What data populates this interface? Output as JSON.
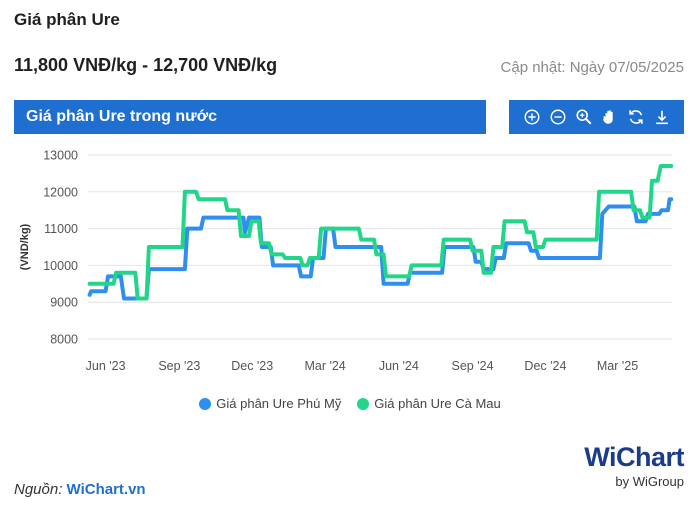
{
  "header": {
    "title": "Giá phân Ure",
    "price_range": "11,800 VNĐ/kg - 12,700 VNĐ/kg",
    "updated": "Cập nhật: Ngày 07/05/2025"
  },
  "panel": {
    "title": "Giá phân Ure trong nước"
  },
  "toolbar": {
    "icons": [
      "zoom-in-icon",
      "zoom-out-icon",
      "magnify-icon",
      "pan-hand-icon",
      "reset-icon",
      "download-icon"
    ]
  },
  "footer": {
    "source_label": "Nguồn:",
    "source_link": "WiChart.vn",
    "brand_w": "Wi",
    "brand_chart": "Chart",
    "brand_by": "by WiGroup"
  },
  "colors": {
    "accent": "#1f6fd1",
    "phu_my": "#2e8ff0",
    "ca_mau": "#21d688"
  },
  "chart_data": {
    "type": "line",
    "title": "",
    "xlabel": "",
    "ylabel": "(VND/kg)",
    "ylim": [
      8000,
      13000
    ],
    "yticks": [
      8000,
      9000,
      10000,
      11000,
      12000,
      13000
    ],
    "xlim": [
      "2023-05-10",
      "2025-05-08"
    ],
    "xticks": [
      {
        "date": "2023-06-01",
        "label": "Jun '23"
      },
      {
        "date": "2023-09-01",
        "label": "Sep '23"
      },
      {
        "date": "2023-12-01",
        "label": "Dec '23"
      },
      {
        "date": "2024-03-01",
        "label": "Mar '24"
      },
      {
        "date": "2024-06-01",
        "label": "Jun '24"
      },
      {
        "date": "2024-09-01",
        "label": "Sep '24"
      },
      {
        "date": "2024-12-01",
        "label": "Dec '24"
      },
      {
        "date": "2025-03-01",
        "label": "Mar '25"
      }
    ],
    "legend_position": "bottom",
    "grid": "horizontal",
    "series": [
      {
        "name": "Giá phân Ure Phú Mỹ",
        "points": [
          [
            "2023-05-12",
            9200
          ],
          [
            "2023-05-14",
            9300
          ],
          [
            "2023-06-01",
            9300
          ],
          [
            "2023-06-04",
            9700
          ],
          [
            "2023-06-20",
            9700
          ],
          [
            "2023-06-24",
            9100
          ],
          [
            "2023-07-22",
            9100
          ],
          [
            "2023-07-25",
            9900
          ],
          [
            "2023-09-08",
            9900
          ],
          [
            "2023-09-11",
            11000
          ],
          [
            "2023-09-28",
            11000
          ],
          [
            "2023-10-01",
            11300
          ],
          [
            "2023-11-20",
            11300
          ],
          [
            "2023-11-22",
            10900
          ],
          [
            "2023-11-27",
            11300
          ],
          [
            "2023-12-10",
            11300
          ],
          [
            "2023-12-13",
            10500
          ],
          [
            "2023-12-24",
            10500
          ],
          [
            "2023-12-27",
            10000
          ],
          [
            "2024-01-28",
            10000
          ],
          [
            "2024-01-31",
            9700
          ],
          [
            "2024-02-12",
            9700
          ],
          [
            "2024-02-15",
            10200
          ],
          [
            "2024-02-28",
            10200
          ],
          [
            "2024-03-02",
            11000
          ],
          [
            "2024-03-11",
            11000
          ],
          [
            "2024-03-14",
            10500
          ],
          [
            "2024-05-10",
            10500
          ],
          [
            "2024-05-13",
            9500
          ],
          [
            "2024-06-12",
            9500
          ],
          [
            "2024-06-15",
            9800
          ],
          [
            "2024-07-25",
            9800
          ],
          [
            "2024-07-28",
            10500
          ],
          [
            "2024-09-02",
            10500
          ],
          [
            "2024-09-05",
            10100
          ],
          [
            "2024-09-12",
            10100
          ],
          [
            "2024-09-15",
            9900
          ],
          [
            "2024-09-27",
            9900
          ],
          [
            "2024-09-30",
            10200
          ],
          [
            "2024-10-10",
            10200
          ],
          [
            "2024-10-13",
            10600
          ],
          [
            "2024-11-10",
            10600
          ],
          [
            "2024-11-13",
            10400
          ],
          [
            "2024-11-20",
            10400
          ],
          [
            "2024-11-23",
            10200
          ],
          [
            "2025-02-07",
            10200
          ],
          [
            "2025-02-10",
            11400
          ],
          [
            "2025-02-18",
            11600
          ],
          [
            "2025-03-22",
            11600
          ],
          [
            "2025-03-25",
            11200
          ],
          [
            "2025-04-05",
            11200
          ],
          [
            "2025-04-08",
            11400
          ],
          [
            "2025-04-22",
            11400
          ],
          [
            "2025-04-25",
            11500
          ],
          [
            "2025-05-03",
            11500
          ],
          [
            "2025-05-05",
            11800
          ],
          [
            "2025-05-07",
            11800
          ]
        ]
      },
      {
        "name": "Giá phân Ure Cà Mau",
        "points": [
          [
            "2023-05-12",
            9500
          ],
          [
            "2023-06-11",
            9500
          ],
          [
            "2023-06-14",
            9800
          ],
          [
            "2023-07-08",
            9800
          ],
          [
            "2023-07-11",
            9100
          ],
          [
            "2023-07-22",
            9100
          ],
          [
            "2023-07-25",
            10500
          ],
          [
            "2023-09-05",
            10500
          ],
          [
            "2023-09-08",
            12000
          ],
          [
            "2023-09-22",
            12000
          ],
          [
            "2023-09-25",
            11800
          ],
          [
            "2023-10-28",
            11800
          ],
          [
            "2023-10-31",
            11500
          ],
          [
            "2023-11-14",
            11500
          ],
          [
            "2023-11-17",
            10800
          ],
          [
            "2023-11-27",
            10800
          ],
          [
            "2023-11-30",
            11200
          ],
          [
            "2023-12-09",
            11200
          ],
          [
            "2023-12-12",
            10600
          ],
          [
            "2023-12-22",
            10600
          ],
          [
            "2023-12-25",
            10300
          ],
          [
            "2024-01-08",
            10300
          ],
          [
            "2024-01-11",
            10200
          ],
          [
            "2024-01-30",
            10200
          ],
          [
            "2024-02-02",
            10000
          ],
          [
            "2024-02-08",
            10000
          ],
          [
            "2024-02-11",
            10200
          ],
          [
            "2024-02-22",
            10200
          ],
          [
            "2024-02-25",
            11000
          ],
          [
            "2024-04-12",
            11000
          ],
          [
            "2024-04-15",
            10700
          ],
          [
            "2024-05-01",
            10700
          ],
          [
            "2024-05-04",
            10300
          ],
          [
            "2024-05-13",
            10300
          ],
          [
            "2024-05-16",
            9700
          ],
          [
            "2024-06-14",
            9700
          ],
          [
            "2024-06-17",
            10000
          ],
          [
            "2024-07-24",
            10000
          ],
          [
            "2024-07-27",
            10700
          ],
          [
            "2024-08-29",
            10700
          ],
          [
            "2024-09-01",
            10400
          ],
          [
            "2024-09-12",
            10400
          ],
          [
            "2024-09-15",
            9800
          ],
          [
            "2024-09-24",
            9800
          ],
          [
            "2024-09-27",
            10500
          ],
          [
            "2024-10-08",
            10500
          ],
          [
            "2024-10-11",
            11200
          ],
          [
            "2024-11-05",
            11200
          ],
          [
            "2024-11-08",
            10900
          ],
          [
            "2024-11-16",
            10900
          ],
          [
            "2024-11-19",
            10500
          ],
          [
            "2024-11-28",
            10500
          ],
          [
            "2024-12-01",
            10700
          ],
          [
            "2025-02-03",
            10700
          ],
          [
            "2025-02-06",
            12000
          ],
          [
            "2025-03-18",
            12000
          ],
          [
            "2025-03-21",
            11500
          ],
          [
            "2025-03-29",
            11500
          ],
          [
            "2025-04-01",
            11300
          ],
          [
            "2025-04-10",
            11300
          ],
          [
            "2025-04-13",
            12300
          ],
          [
            "2025-04-20",
            12300
          ],
          [
            "2025-04-24",
            12700
          ],
          [
            "2025-05-07",
            12700
          ]
        ]
      }
    ]
  }
}
